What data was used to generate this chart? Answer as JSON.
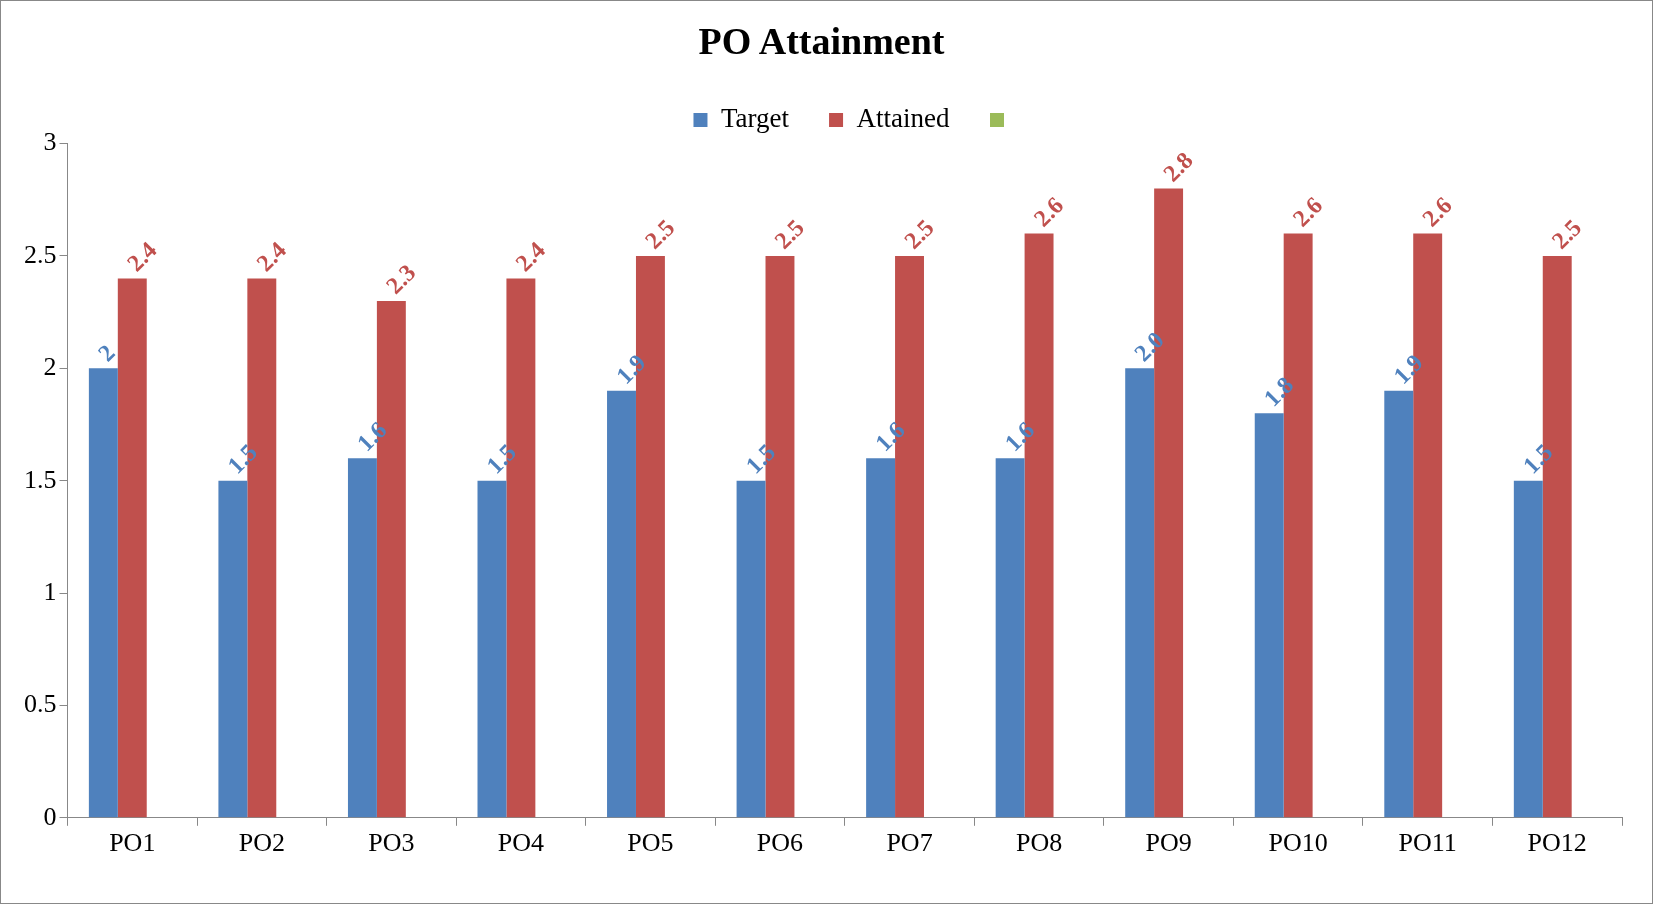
{
  "chart_data": {
    "type": "bar",
    "title": "PO Attainment",
    "categories": [
      "PO1",
      "PO2",
      "PO3",
      "PO4",
      "PO5",
      "PO6",
      "PO7",
      "PO8",
      "PO9",
      "PO10",
      "PO11",
      "PO12"
    ],
    "series": [
      {
        "name": "Target",
        "color": "#4f81bd",
        "values": [
          2,
          1.5,
          1.6,
          1.5,
          1.9,
          1.5,
          1.6,
          1.6,
          2.0,
          1.8,
          1.9,
          1.5
        ],
        "value_labels": [
          "2",
          "1.5",
          "1.6",
          "1.5",
          "1.9",
          "1.5",
          "1.6",
          "1.6",
          "2.0",
          "1.8",
          "1.9",
          "1.5"
        ]
      },
      {
        "name": "Attained",
        "color": "#c0504d",
        "values": [
          2.4,
          2.4,
          2.3,
          2.4,
          2.5,
          2.5,
          2.5,
          2.6,
          2.8,
          2.6,
          2.6,
          2.5
        ],
        "value_labels": [
          "2.4",
          "2.4",
          "2.3",
          "2.4",
          "2.5",
          "2.5",
          "2.5",
          "2.6",
          "2.8",
          "2.6",
          "2.6",
          "2.5"
        ]
      },
      {
        "color": "#9bbb59",
        "values": [
          null,
          null,
          null,
          null,
          null,
          null,
          null,
          null,
          null,
          null,
          null,
          null
        ]
      }
    ],
    "ylim": [
      0,
      3
    ],
    "yticks": [
      0,
      0.5,
      1,
      1.5,
      2,
      2.5,
      3
    ],
    "grid": false,
    "legend": "top"
  }
}
